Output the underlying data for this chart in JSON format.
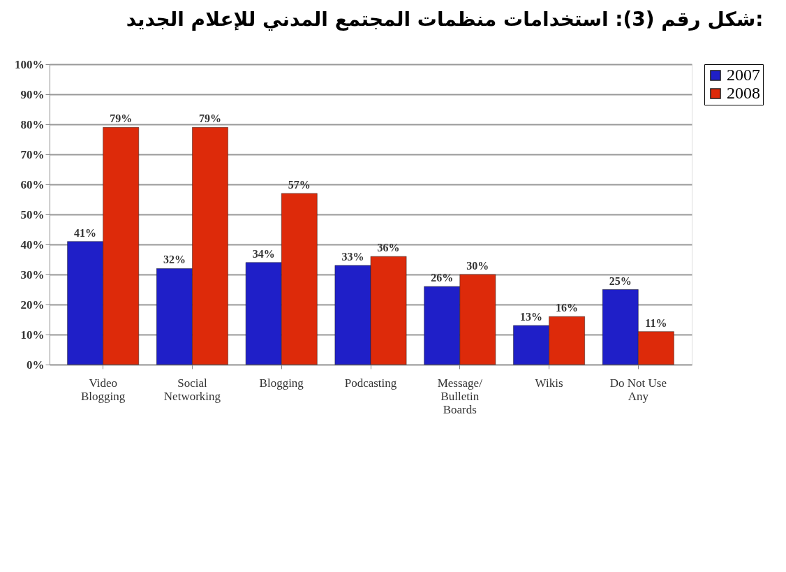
{
  "chart_data": {
    "type": "bar",
    "title": "شكل رقم (3): استخدامات منظمات المجتمع المدني للإعلام الجديد:",
    "categories": [
      "Video\nBlogging",
      "Social\nNetworking",
      "Blogging",
      "Podcasting",
      "Message/\nBulletin\nBoards",
      "Wikis",
      "Do Not Use\nAny"
    ],
    "series": [
      {
        "name": "2007",
        "color": "#1f1fc8",
        "values": [
          41,
          32,
          34,
          33,
          26,
          13,
          25
        ],
        "value_labels": [
          "41%",
          "32%",
          "34%",
          "33%",
          "26%",
          "13%",
          "25%"
        ]
      },
      {
        "name": "2008",
        "color": "#dd2a0a",
        "values": [
          79,
          79,
          57,
          36,
          30,
          16,
          11
        ],
        "value_labels": [
          "79%",
          "79%",
          "57%",
          "36%",
          "30%",
          "16%",
          "11%"
        ]
      }
    ],
    "ylim": [
      0,
      100
    ],
    "yticks": [
      {
        "value": 0,
        "label": "0%"
      },
      {
        "value": 10,
        "label": "10%"
      },
      {
        "value": 20,
        "label": "20%"
      },
      {
        "value": 30,
        "label": "30%"
      },
      {
        "value": 40,
        "label": "40%"
      },
      {
        "value": 50,
        "label": "50%"
      },
      {
        "value": 60,
        "label": "60%"
      },
      {
        "value": 70,
        "label": "70%"
      },
      {
        "value": 80,
        "label": "80%"
      },
      {
        "value": 90,
        "label": "90%"
      },
      {
        "value": 100,
        "label": "100%"
      }
    ],
    "grid": "y",
    "legend": "top right"
  }
}
